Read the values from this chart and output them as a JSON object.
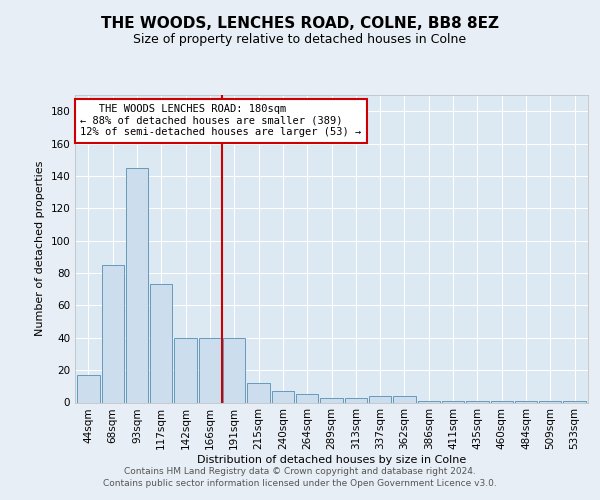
{
  "title": "THE WOODS, LENCHES ROAD, COLNE, BB8 8EZ",
  "subtitle": "Size of property relative to detached houses in Colne",
  "xlabel": "Distribution of detached houses by size in Colne",
  "ylabel": "Number of detached properties",
  "footer_line1": "Contains HM Land Registry data © Crown copyright and database right 2024.",
  "footer_line2": "Contains public sector information licensed under the Open Government Licence v3.0.",
  "categories": [
    "44sqm",
    "68sqm",
    "93sqm",
    "117sqm",
    "142sqm",
    "166sqm",
    "191sqm",
    "215sqm",
    "240sqm",
    "264sqm",
    "289sqm",
    "313sqm",
    "337sqm",
    "362sqm",
    "386sqm",
    "411sqm",
    "435sqm",
    "460sqm",
    "484sqm",
    "509sqm",
    "533sqm"
  ],
  "values": [
    17,
    85,
    145,
    73,
    40,
    40,
    40,
    12,
    7,
    5,
    3,
    3,
    4,
    4,
    1,
    1,
    1,
    1,
    1,
    1,
    1
  ],
  "bar_color": "#ccdded",
  "bar_edge_color": "#6699bb",
  "highlight_bar_index": 6,
  "highlight_line_color": "#cc0000",
  "annotation_line1": "   THE WOODS LENCHES ROAD: 180sqm",
  "annotation_line2": "← 88% of detached houses are smaller (389)",
  "annotation_line3": "12% of semi-detached houses are larger (53) →",
  "annotation_box_edge_color": "#cc0000",
  "annotation_box_face_color": "#ffffff",
  "ylim": [
    0,
    190
  ],
  "yticks": [
    0,
    20,
    40,
    60,
    80,
    100,
    120,
    140,
    160,
    180
  ],
  "background_color": "#e8eef5",
  "plot_background_color": "#dce8f2",
  "grid_color": "#ffffff",
  "title_fontsize": 11,
  "subtitle_fontsize": 9,
  "axis_fontsize": 8,
  "tick_fontsize": 7.5,
  "footer_fontsize": 6.5
}
